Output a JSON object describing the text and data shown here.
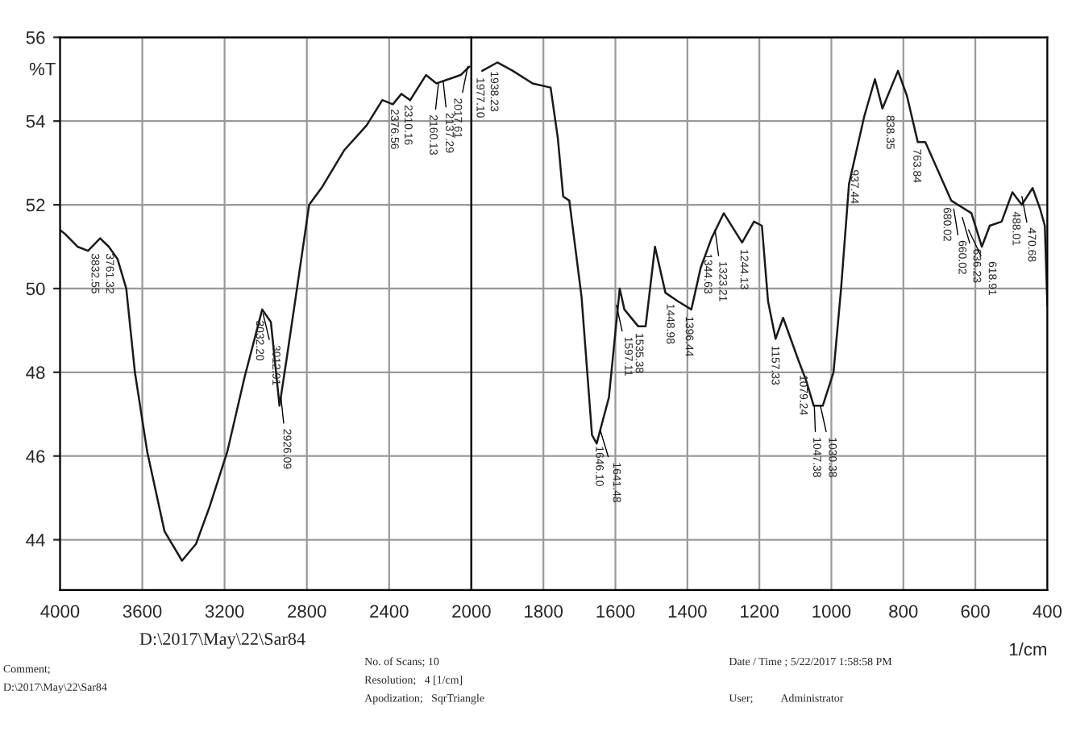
{
  "chart_data": [
    {
      "type": "line",
      "ylabel": "%T",
      "x": [
        4000,
        3975,
        3915,
        3864,
        3805,
        3763,
        3720,
        3678,
        3636,
        3576,
        3492,
        3407,
        3339,
        3272,
        3187,
        3102,
        3017,
        2975,
        2933,
        2899,
        2848,
        2789,
        2729,
        2619,
        2509,
        2433,
        2382,
        2340,
        2298,
        2221,
        2170,
        2111,
        2052,
        2010
      ],
      "series": [
        {
          "color": "#1a1a1a",
          "values": [
            51.4,
            51.3,
            51.0,
            50.9,
            51.2,
            51.0,
            50.7,
            50.0,
            48.0,
            46.1,
            44.2,
            43.5,
            43.9,
            44.8,
            46.1,
            47.9,
            49.5,
            49.2,
            47.2,
            48.3,
            50.0,
            52.0,
            52.4,
            53.3,
            53.9,
            54.5,
            54.4,
            54.65,
            54.5,
            55.1,
            54.9,
            55.0,
            55.1,
            55.3
          ]
        }
      ],
      "xlim": [
        4000,
        2000
      ],
      "xticks": [
        4000,
        3600,
        3200,
        2800,
        2400,
        2000
      ],
      "ylim": [
        42.8,
        56
      ],
      "yticks": [
        44,
        46,
        48,
        50,
        52,
        54,
        56
      ],
      "grid": true,
      "line_style": "solid",
      "marker": "none",
      "annotations": [
        "D:\\2017\\May\\22\\Sar84",
        "Comment;",
        "D:\\2017\\May\\22\\Sar84",
        "No. of Scans; 10",
        "Resolution;   4 [1/cm]",
        "Apodization;   SqrTriangle",
        "Date / Time ; 5/22/2017 1:58:58 PM",
        "User;          Administrator",
        {
          "text": "3832.55",
          "x": 3832.55,
          "y": 51.0
        },
        {
          "text": "3761.32",
          "x": 3761.32,
          "y": 51.0
        },
        {
          "text": "3032.20",
          "x": 3032.2,
          "y": 49.4
        },
        {
          "text": "3012.91",
          "x": 3012.91,
          "y": 49.4
        },
        {
          "text": "2926.09",
          "x": 2926.09,
          "y": 47.4
        },
        {
          "text": "2376.56",
          "x": 2376.56,
          "y": 54.45
        },
        {
          "text": "2310.16",
          "x": 2310.16,
          "y": 54.55
        },
        {
          "text": "2160.13",
          "x": 2160.13,
          "y": 54.9
        },
        {
          "text": "2137.29",
          "x": 2137.29,
          "y": 54.95
        },
        {
          "text": "2017.61",
          "x": 2017.61,
          "y": 55.3
        }
      ]
    },
    {
      "type": "line",
      "xlabel": "1/cm",
      "tick_labels": "x",
      "x": [
        1970,
        1928,
        1885,
        1830,
        1780,
        1760,
        1745,
        1728,
        1694,
        1665,
        1652,
        1618,
        1588,
        1575,
        1537,
        1516,
        1490,
        1461,
        1427,
        1389,
        1363,
        1333,
        1299,
        1248,
        1215,
        1193,
        1176,
        1155,
        1134,
        1092,
        1070,
        1049,
        1024,
        994,
        973,
        951,
        909,
        879,
        858,
        815,
        790,
        760,
        739,
        667,
        611,
        582,
        560,
        527,
        497,
        471,
        441,
        420,
        407,
        400
      ],
      "series": [
        {
          "color": "#1a1a1a",
          "values": [
            55.2,
            55.4,
            55.2,
            54.9,
            54.8,
            53.6,
            52.2,
            52.1,
            49.8,
            46.5,
            46.3,
            47.4,
            50.0,
            49.5,
            49.1,
            49.1,
            51.0,
            49.9,
            49.7,
            49.5,
            50.5,
            51.2,
            51.8,
            51.1,
            51.6,
            51.5,
            49.7,
            48.8,
            49.3,
            48.3,
            47.8,
            47.2,
            47.2,
            48.0,
            50.0,
            52.5,
            54.1,
            55.0,
            54.3,
            55.2,
            54.6,
            53.5,
            53.5,
            52.1,
            51.8,
            51.0,
            51.5,
            51.6,
            52.3,
            52.0,
            52.4,
            51.9,
            51.5,
            49.6
          ]
        }
      ],
      "xlim": [
        2000,
        400
      ],
      "xticks": [
        1800,
        1600,
        1400,
        1200,
        1000,
        800,
        600,
        400
      ],
      "ylim": [
        42.8,
        56
      ],
      "yticks": [
        44,
        46,
        48,
        50,
        52,
        54,
        56
      ],
      "grid": true,
      "line_style": "solid",
      "marker": "none",
      "annotations": [
        {
          "text": "1977.10",
          "x": 1977.1,
          "y": 55.2
        },
        {
          "text": "1938.23",
          "x": 1938.23,
          "y": 55.35
        },
        {
          "text": "1646.10",
          "x": 1646.1,
          "y": 46.4
        },
        {
          "text": "1641.48",
          "x": 1641.48,
          "y": 46.6
        },
        {
          "text": "1597.11",
          "x": 1597.11,
          "y": 49.6
        },
        {
          "text": "1535.38",
          "x": 1535.38,
          "y": 49.1
        },
        {
          "text": "1448.98",
          "x": 1448.98,
          "y": 49.8
        },
        {
          "text": "1396.44",
          "x": 1396.44,
          "y": 49.5
        },
        {
          "text": "1344.63",
          "x": 1344.63,
          "y": 51.0
        },
        {
          "text": "1323.21",
          "x": 1323.21,
          "y": 51.4
        },
        {
          "text": "1244.13",
          "x": 1244.13,
          "y": 51.1
        },
        {
          "text": "1157.33",
          "x": 1157.33,
          "y": 48.8
        },
        {
          "text": "1079.24",
          "x": 1079.24,
          "y": 48.1
        },
        {
          "text": "1047.38",
          "x": 1047.38,
          "y": 47.2
        },
        {
          "text": "1030.38",
          "x": 1030.38,
          "y": 47.2
        },
        {
          "text": "937.44",
          "x": 937.44,
          "y": 53.0
        },
        {
          "text": "838.35",
          "x": 838.35,
          "y": 54.3
        },
        {
          "text": "763.84",
          "x": 763.84,
          "y": 53.5
        },
        {
          "text": "680.02",
          "x": 680.02,
          "y": 52.1
        },
        {
          "text": "660.02",
          "x": 660.02,
          "y": 51.9
        },
        {
          "text": "636.23",
          "x": 636.23,
          "y": 51.7
        },
        {
          "text": "618.91",
          "x": 618.91,
          "y": 51.4
        },
        {
          "text": "488.01",
          "x": 488.01,
          "y": 52.0
        },
        {
          "text": "470.68",
          "x": 470.68,
          "y": 52.2
        }
      ]
    }
  ]
}
